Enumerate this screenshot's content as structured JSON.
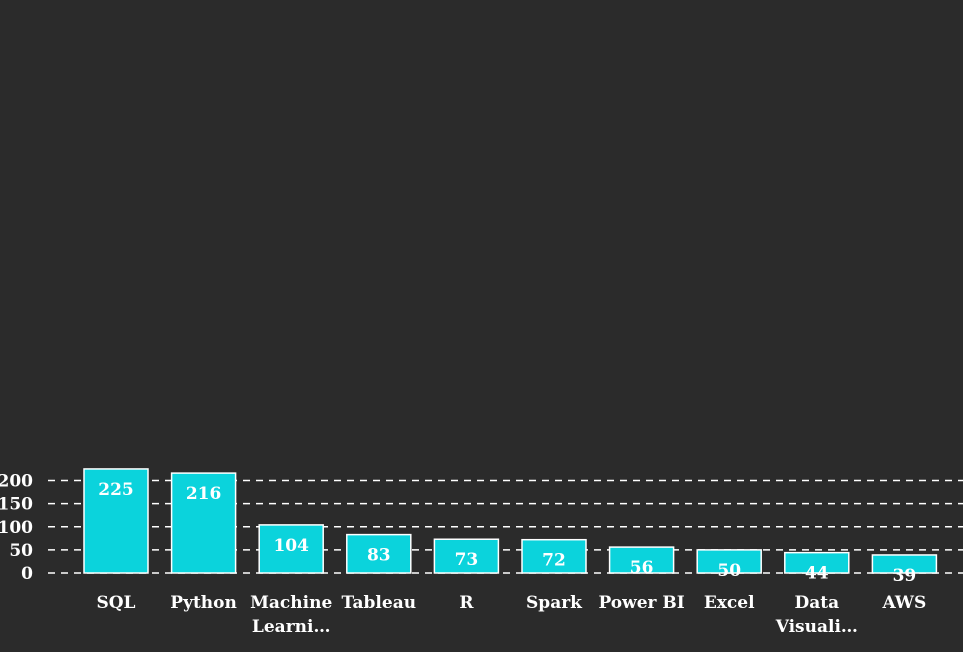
{
  "chart_data": {
    "type": "bar",
    "title": "",
    "xlabel": "",
    "ylabel": "",
    "categories": [
      "SQL",
      "Python",
      "Machine Learni…",
      "Tableau",
      "R",
      "Spark",
      "Power BI",
      "Excel",
      "Data Visuali…",
      "AWS"
    ],
    "category_lines": [
      [
        "SQL"
      ],
      [
        "Python"
      ],
      [
        "Machine",
        "Learni…"
      ],
      [
        "Tableau"
      ],
      [
        "R"
      ],
      [
        "Spark"
      ],
      [
        "Power BI"
      ],
      [
        "Excel"
      ],
      [
        "Data",
        "Visuali…"
      ],
      [
        "AWS"
      ]
    ],
    "values": [
      225,
      216,
      104,
      83,
      73,
      72,
      56,
      50,
      44,
      39
    ],
    "ylim": [
      0,
      240
    ],
    "yticks": [
      0,
      50,
      100,
      150,
      200
    ],
    "ytick_labels": [
      "0",
      "50",
      "100",
      "150",
      "200"
    ],
    "grid": true,
    "legend": "none",
    "colors": {
      "background": "#2b2b2b",
      "bar": "#0bd3dc",
      "bar_edge": "#ffffff",
      "text": "#ffffff",
      "grid": "#ffffff"
    }
  }
}
